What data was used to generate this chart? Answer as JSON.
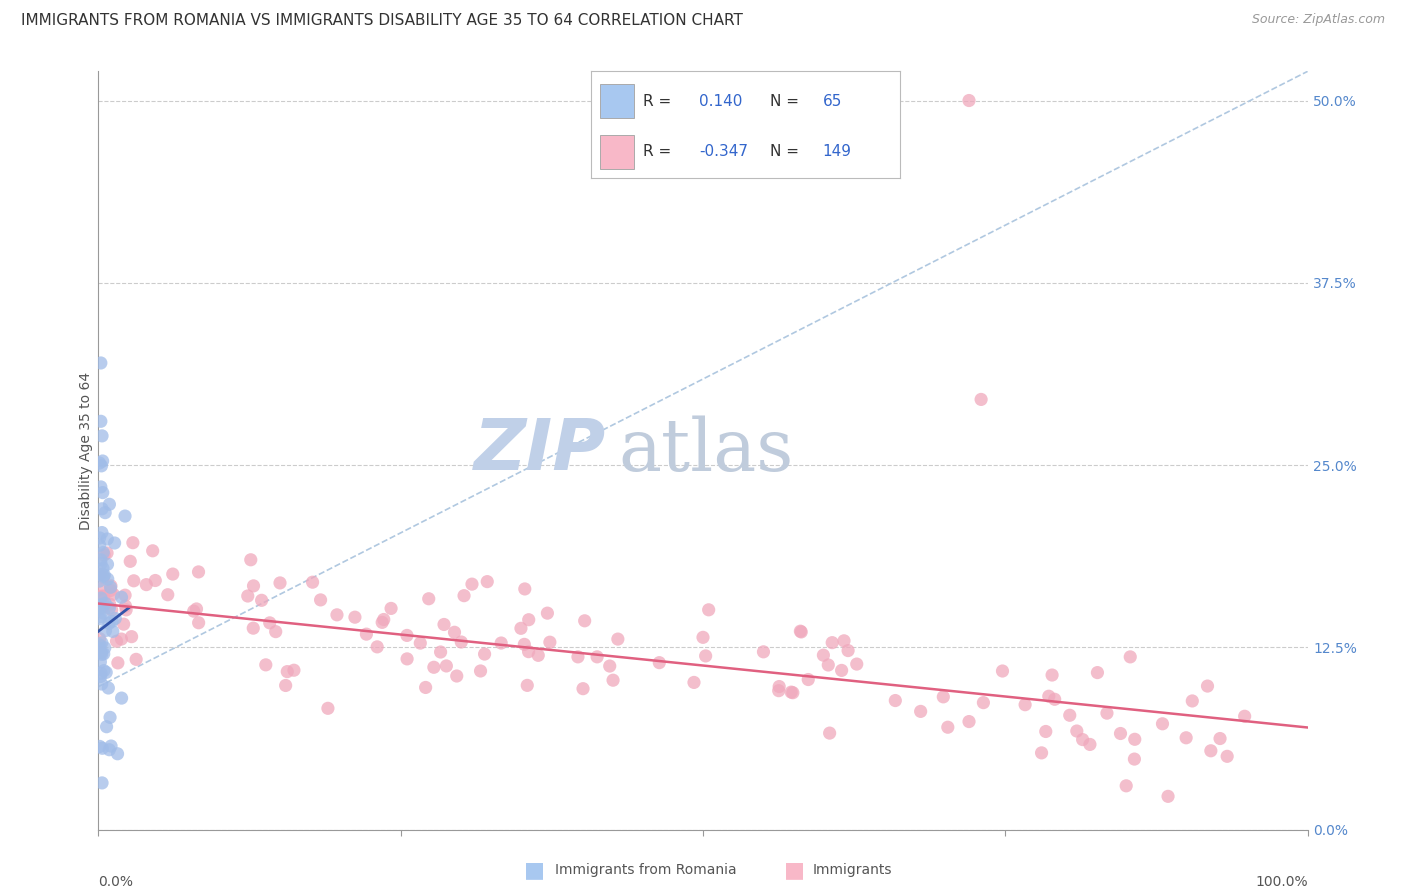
{
  "title": "IMMIGRANTS FROM ROMANIA VS IMMIGRANTS DISABILITY AGE 35 TO 64 CORRELATION CHART",
  "source": "Source: ZipAtlas.com",
  "ylabel": "Disability Age 35 to 64",
  "right_yticks": [
    0.0,
    0.125,
    0.25,
    0.375,
    0.5
  ],
  "right_ytick_labels": [
    "0.0%",
    "12.5%",
    "25.0%",
    "37.5%",
    "50.0%"
  ],
  "legend_entries": [
    {
      "label": "Immigrants from Romania",
      "R": "0.140",
      "N": "65",
      "color": "#a8c8f0"
    },
    {
      "label": "Immigrants",
      "R": "-0.347",
      "N": "149",
      "color": "#f8b8c8"
    }
  ],
  "watermark_zip": "ZIP",
  "watermark_atlas": "atlas",
  "xlim": [
    0.0,
    1.0
  ],
  "ylim": [
    0.0,
    0.52
  ],
  "blue_color": "#a0bce8",
  "pink_color": "#f0a8bc",
  "blue_line_color": "#3355aa",
  "pink_line_color": "#e06080",
  "blue_dash_color": "#b0c8e0",
  "grid_color": "#cccccc",
  "background_color": "#ffffff",
  "title_fontsize": 11,
  "axis_label_fontsize": 10,
  "tick_fontsize": 10,
  "right_tick_color": "#5588cc",
  "watermark_zip_color": "#c0d0e8",
  "watermark_atlas_color": "#c0ccdc"
}
